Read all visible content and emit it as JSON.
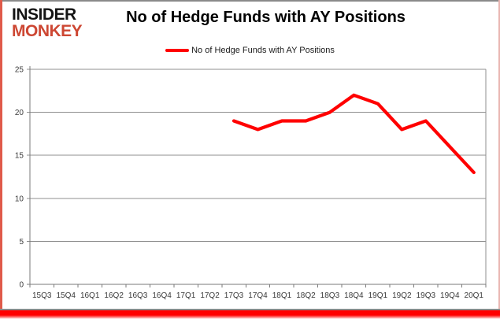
{
  "header": {
    "logo_line1": "INSIDER",
    "logo_line2": "MONKEY",
    "title": "No of Hedge Funds with AY Positions"
  },
  "legend": {
    "label": "No of Hedge Funds with AY Positions",
    "marker_color": "#ff0000"
  },
  "colors": {
    "series_red": "#ff0000",
    "logo_red": "#cd4733",
    "grid": "#8f8f8f",
    "axis": "#7a7a7a",
    "axis_text": "#3a3a3a",
    "bottom_bar_red": "#ff0000",
    "box_border_grey": "#8a8a8a"
  },
  "chart_data": {
    "type": "line",
    "title": "No of Hedge Funds with AY Positions",
    "categories": [
      "15Q3",
      "15Q4",
      "16Q1",
      "16Q2",
      "16Q3",
      "16Q4",
      "17Q1",
      "17Q2",
      "17Q3",
      "17Q4",
      "18Q1",
      "18Q2",
      "18Q3",
      "18Q4",
      "19Q1",
      "19Q2",
      "19Q3",
      "19Q4",
      "20Q1"
    ],
    "series": [
      {
        "name": "No of Hedge Funds with AY Positions",
        "color": "#ff0000",
        "start_index": 8,
        "values": [
          19,
          18,
          19,
          19,
          20,
          22,
          21,
          18,
          19,
          16,
          13
        ]
      }
    ],
    "points": {
      "17Q3": 19,
      "17Q4": 18,
      "18Q1": 19,
      "18Q2": 19,
      "18Q3": 20,
      "18Q4": 22,
      "19Q1": 21,
      "19Q2": 18,
      "19Q3": 19,
      "19Q4": 16,
      "20Q1": 13
    },
    "xlabel": "",
    "ylabel": "",
    "ylim": [
      0,
      25
    ],
    "yticks": [
      0,
      5,
      10,
      15,
      20,
      25
    ],
    "grid": "horizontal",
    "legend_position": "top"
  }
}
